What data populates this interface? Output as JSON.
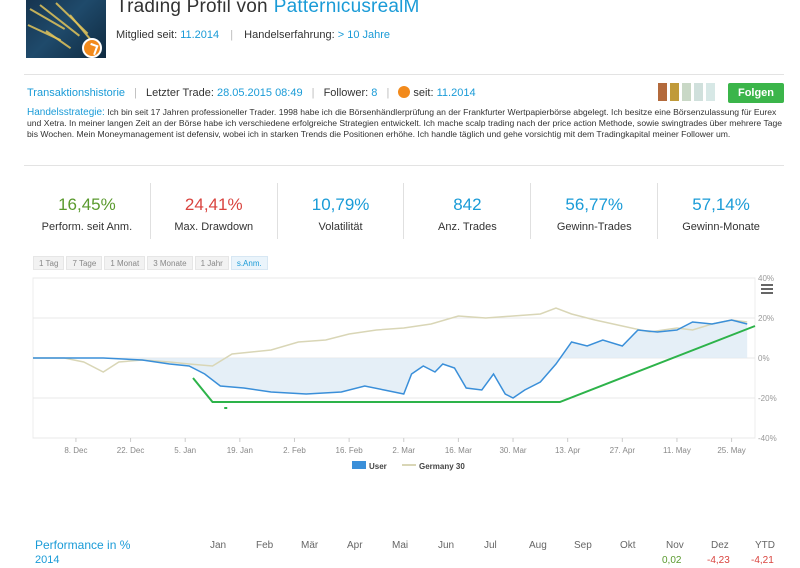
{
  "header": {
    "title": "Trading Profil von",
    "username": "PatternicusrealM",
    "member_label": "Mitglied seit:",
    "member_value": "11.2014",
    "experience_label": "Handelserfahrung:",
    "experience_value": "> 10 Jahre"
  },
  "info": {
    "history_link": "Transaktionshistorie",
    "last_trade_label": "Letzter Trade:",
    "last_trade_value": "28.05.2015 08:49",
    "follower_label": "Follower:",
    "follower_value": "8",
    "since_label": "seit:",
    "since_value": "11.2014",
    "follow_button": "Folgen",
    "ribbon_colors": [
      "#b36a3c",
      "#c09a3a",
      "#c9d8c6",
      "#d0e0dc",
      "#d7e8e6"
    ]
  },
  "strategy": {
    "label": "Handelsstrategie:",
    "text": "Ich bin seit 17 Jahren professioneller Trader. 1998 habe ich die Börsenhändlerprüfung an der Frankfurter Wertpapierbörse abgelegt. Ich besitze eine Börsenzulassung für Eurex und Xetra. In meiner langen Zeit an der Börse habe ich verschiedene erfolgreiche Strategien entwickelt. Ich mache scalp trading nach der price action Methode, sowie swingtrades über mehrere Tage bis Wochen. Mein Moneymanagement ist defensiv, wobei ich in starken Trends die Positionen erhöhe. Ich handle täglich und gehe vorsichtig mit dem Tradingkapital meiner Follower um."
  },
  "stats": [
    {
      "value": "16,45%",
      "label": "Perform. seit Anm.",
      "color": "#5a9a2e"
    },
    {
      "value": "24,41%",
      "label": "Max. Drawdown",
      "color": "#d9443f"
    },
    {
      "value": "10,79%",
      "label": "Volatilität",
      "color": "#1a9bd7"
    },
    {
      "value": "842",
      "label": "Anz. Trades",
      "color": "#1a9bd7"
    },
    {
      "value": "56,77%",
      "label": "Gewinn-Trades",
      "color": "#1a9bd7"
    },
    {
      "value": "57,14%",
      "label": "Gewinn-Monate",
      "color": "#1a9bd7"
    }
  ],
  "tabs": [
    {
      "label": "1 Tag",
      "active": false
    },
    {
      "label": "7 Tage",
      "active": false
    },
    {
      "label": "1 Monat",
      "active": false
    },
    {
      "label": "3 Monate",
      "active": false
    },
    {
      "label": "1 Jahr",
      "active": false
    },
    {
      "label": "s.Anm.",
      "active": true
    }
  ],
  "chart_data": {
    "type": "line",
    "x_ticks": [
      "8. Dec",
      "22. Dec",
      "5. Jan",
      "19. Jan",
      "2. Feb",
      "16. Feb",
      "2. Mar",
      "16. Mar",
      "30. Mar",
      "13. Apr",
      "27. Apr",
      "11. May",
      "25. May"
    ],
    "y_ticks": [
      "40%",
      "20%",
      "0%",
      "-20%",
      "-40%"
    ],
    "ylim": [
      -40,
      40
    ],
    "x_start": "2014-11-27",
    "x_end": "2015-05-31",
    "series": [
      {
        "name": "User",
        "color": "#3a8fd9",
        "points": [
          [
            "2014-11-27",
            0
          ],
          [
            "2014-12-05",
            0
          ],
          [
            "2014-12-15",
            0
          ],
          [
            "2014-12-25",
            -1
          ],
          [
            "2015-01-01",
            -3
          ],
          [
            "2015-01-06",
            -4
          ],
          [
            "2015-01-10",
            -8
          ],
          [
            "2015-01-14",
            -14
          ],
          [
            "2015-01-20",
            -15
          ],
          [
            "2015-01-27",
            -17
          ],
          [
            "2015-02-05",
            -18
          ],
          [
            "2015-02-14",
            -17
          ],
          [
            "2015-02-20",
            -14
          ],
          [
            "2015-02-25",
            -16
          ],
          [
            "2015-03-02",
            -18
          ],
          [
            "2015-03-04",
            -8
          ],
          [
            "2015-03-07",
            -4
          ],
          [
            "2015-03-10",
            -7
          ],
          [
            "2015-03-12",
            -3
          ],
          [
            "2015-03-15",
            -5
          ],
          [
            "2015-03-18",
            -15
          ],
          [
            "2015-03-22",
            -16
          ],
          [
            "2015-03-25",
            -8
          ],
          [
            "2015-03-28",
            -18
          ],
          [
            "2015-03-30",
            -20
          ],
          [
            "2015-04-02",
            -16
          ],
          [
            "2015-04-06",
            -12
          ],
          [
            "2015-04-10",
            -3
          ],
          [
            "2015-04-14",
            8
          ],
          [
            "2015-04-18",
            6
          ],
          [
            "2015-04-22",
            9
          ],
          [
            "2015-04-27",
            6
          ],
          [
            "2015-05-01",
            14
          ],
          [
            "2015-05-06",
            13
          ],
          [
            "2015-05-11",
            14
          ],
          [
            "2015-05-15",
            18
          ],
          [
            "2015-05-20",
            17
          ],
          [
            "2015-05-25",
            19
          ],
          [
            "2015-05-29",
            17
          ]
        ]
      },
      {
        "name": "Germany 30",
        "color": "#d9d6b6",
        "points": [
          [
            "2014-11-27",
            0
          ],
          [
            "2014-12-05",
            0
          ],
          [
            "2014-12-10",
            -2
          ],
          [
            "2014-12-15",
            -7
          ],
          [
            "2014-12-19",
            -2
          ],
          [
            "2014-12-25",
            -1
          ],
          [
            "2015-01-01",
            -2
          ],
          [
            "2015-01-06",
            -3
          ],
          [
            "2015-01-12",
            -4
          ],
          [
            "2015-01-17",
            2
          ],
          [
            "2015-01-22",
            3
          ],
          [
            "2015-01-27",
            4
          ],
          [
            "2015-02-03",
            8
          ],
          [
            "2015-02-10",
            9
          ],
          [
            "2015-02-16",
            12
          ],
          [
            "2015-02-23",
            14
          ],
          [
            "2015-03-02",
            15
          ],
          [
            "2015-03-09",
            17
          ],
          [
            "2015-03-16",
            21
          ],
          [
            "2015-03-23",
            20
          ],
          [
            "2015-03-30",
            21
          ],
          [
            "2015-04-06",
            22
          ],
          [
            "2015-04-10",
            25
          ],
          [
            "2015-04-14",
            22
          ],
          [
            "2015-04-20",
            19
          ],
          [
            "2015-04-27",
            16
          ],
          [
            "2015-05-04",
            13
          ],
          [
            "2015-05-11",
            15
          ],
          [
            "2015-05-15",
            14
          ],
          [
            "2015-05-20",
            17
          ],
          [
            "2015-05-25",
            19
          ],
          [
            "2015-05-29",
            18
          ]
        ]
      }
    ],
    "legend_position": "bottom-center",
    "grid": true
  },
  "annotation": {
    "color": "#2db34a",
    "points": [
      [
        "2015-01-07",
        -10
      ],
      [
        "2015-01-12",
        -22
      ],
      [
        "2015-04-11",
        -22
      ],
      [
        "2015-05-31",
        16
      ]
    ]
  },
  "performance_table": {
    "title": "Performance in %",
    "months": [
      "Jan",
      "Feb",
      "Mär",
      "Apr",
      "Mai",
      "Jun",
      "Jul",
      "Aug",
      "Sep",
      "Okt",
      "Nov",
      "Dez",
      "YTD"
    ],
    "rows": [
      {
        "year": "2014",
        "values": [
          "",
          "",
          "",
          "",
          "",
          "",
          "",
          "",
          "",
          "",
          "0,02",
          "-4,23",
          "-4,21"
        ]
      }
    ],
    "positive_color": "#5a9a2e",
    "negative_color": "#d9443f"
  }
}
